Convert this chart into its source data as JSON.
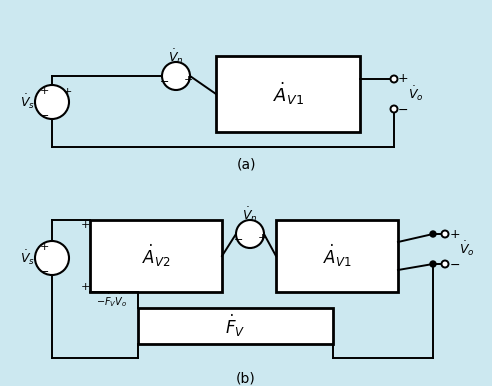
{
  "bg_color": "#cce8f0",
  "line_color": "#000000",
  "label_a": "(a)",
  "label_b": "(b)",
  "Vs_a": "$\\dot{V}_s$",
  "Vn_a": "$\\dot{V}_n$",
  "Vo_a": "$\\dot{V}_o$",
  "Av1_a": "$\\dot{A}_{V1}$",
  "Vs_b": "$\\dot{V}_s$",
  "Vn_b": "$\\dot{V}_n$",
  "Vo_b": "$\\dot{V}_o$",
  "Av1_b": "$\\dot{A}_{V1}$",
  "Av2_b": "$\\dot{A}_{V2}$",
  "Fv_b": "$\\dot{F}_V$",
  "FvVo_b": "$-\\dot{F}_V\\dot{V}_o$"
}
